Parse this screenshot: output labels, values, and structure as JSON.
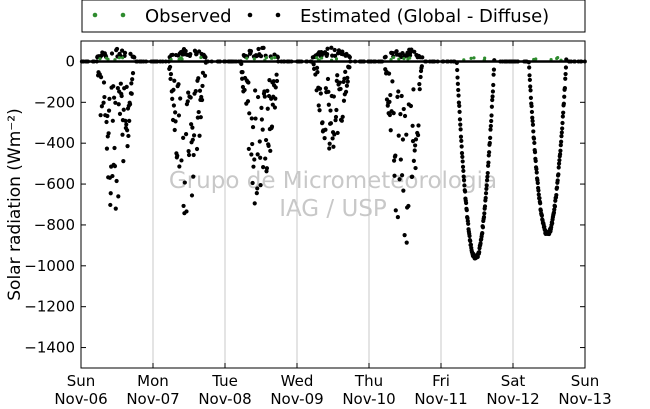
{
  "chart_data": {
    "type": "scatter",
    "ylabel": "Solar radiation (Wm⁻²)",
    "ylim": [
      -1500,
      100
    ],
    "yticks": [
      0,
      -200,
      -400,
      -600,
      -800,
      -1000,
      -1200,
      -1400
    ],
    "xticks": [
      {
        "day": "Sun",
        "date": "Nov-06"
      },
      {
        "day": "Mon",
        "date": "Nov-07"
      },
      {
        "day": "Tue",
        "date": "Nov-08"
      },
      {
        "day": "Wed",
        "date": "Nov-09"
      },
      {
        "day": "Thu",
        "date": "Nov-10"
      },
      {
        "day": "Fri",
        "date": "Nov-11"
      },
      {
        "day": "Sat",
        "date": "Nov-12"
      },
      {
        "day": "Sun",
        "date": "Nov-13"
      }
    ],
    "xlim_days": [
      "Nov-06",
      "Nov-13"
    ],
    "grid": "vertical",
    "legend_position": "top",
    "watermark": [
      "Grupo de Micrometeorologia",
      "IAG / USP"
    ],
    "series": [
      {
        "name": "Observed",
        "marker": "dot",
        "color": "#2e8b2e",
        "note_visible": "near zero baseline"
      },
      {
        "name": "Estimated (Global - Diffuse)",
        "marker": "dot",
        "color": "#000000"
      }
    ],
    "daily_minimum_estimates": [
      {
        "date": "Nov-06",
        "min": -790
      },
      {
        "date": "Nov-07",
        "min": -770
      },
      {
        "date": "Nov-08",
        "min": -760
      },
      {
        "date": "Nov-09",
        "min": -470
      },
      {
        "date": "Nov-10",
        "min": -950
      },
      {
        "date": "Nov-11",
        "min": -965
      },
      {
        "date": "Nov-12",
        "min": -845
      }
    ],
    "colors": {
      "axis": "#000000",
      "grid": "#c8c8c8",
      "watermark": "#c8c8c8"
    }
  }
}
